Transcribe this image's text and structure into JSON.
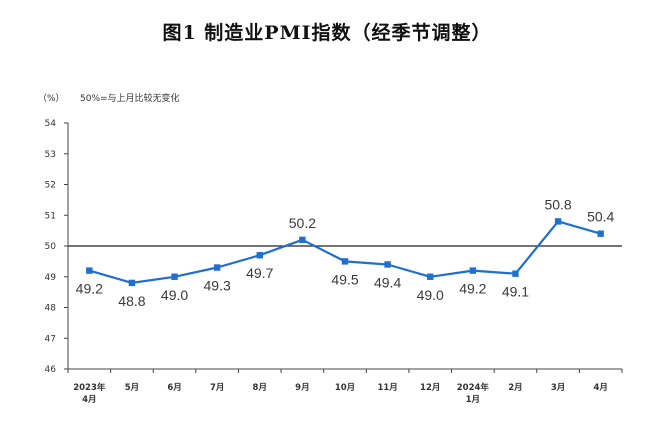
{
  "chart_data": {
    "type": "line",
    "title": "图1  制造业PMI指数（经季节调整）",
    "ylabel": "（%）",
    "note": "50%=与上月比较无变化",
    "ylim": [
      46,
      54
    ],
    "yticks": [
      46,
      47,
      48,
      49,
      50,
      51,
      52,
      53,
      54
    ],
    "reference_line": 50,
    "categories": [
      [
        "2023年",
        "4月"
      ],
      [
        "5月"
      ],
      [
        "6月"
      ],
      [
        "7月"
      ],
      [
        "8月"
      ],
      [
        "9月"
      ],
      [
        "10月"
      ],
      [
        "11月"
      ],
      [
        "12月"
      ],
      [
        "2024年",
        "1月"
      ],
      [
        "2月"
      ],
      [
        "3月"
      ],
      [
        "4月"
      ]
    ],
    "series": [
      {
        "name": "制造业PMI",
        "values": [
          49.2,
          48.8,
          49.0,
          49.3,
          49.7,
          50.2,
          49.5,
          49.4,
          49.0,
          49.2,
          49.1,
          50.8,
          50.4
        ],
        "labels": [
          "49.2",
          "48.8",
          "49.0",
          "49.3",
          "49.7",
          "50.2",
          "49.5",
          "49.4",
          "49.0",
          "49.2",
          "49.1",
          "50.8",
          "50.4"
        ]
      }
    ],
    "colors": {
      "line": "#1f6fd1",
      "axis": "#444444",
      "reference": "#222222"
    }
  }
}
